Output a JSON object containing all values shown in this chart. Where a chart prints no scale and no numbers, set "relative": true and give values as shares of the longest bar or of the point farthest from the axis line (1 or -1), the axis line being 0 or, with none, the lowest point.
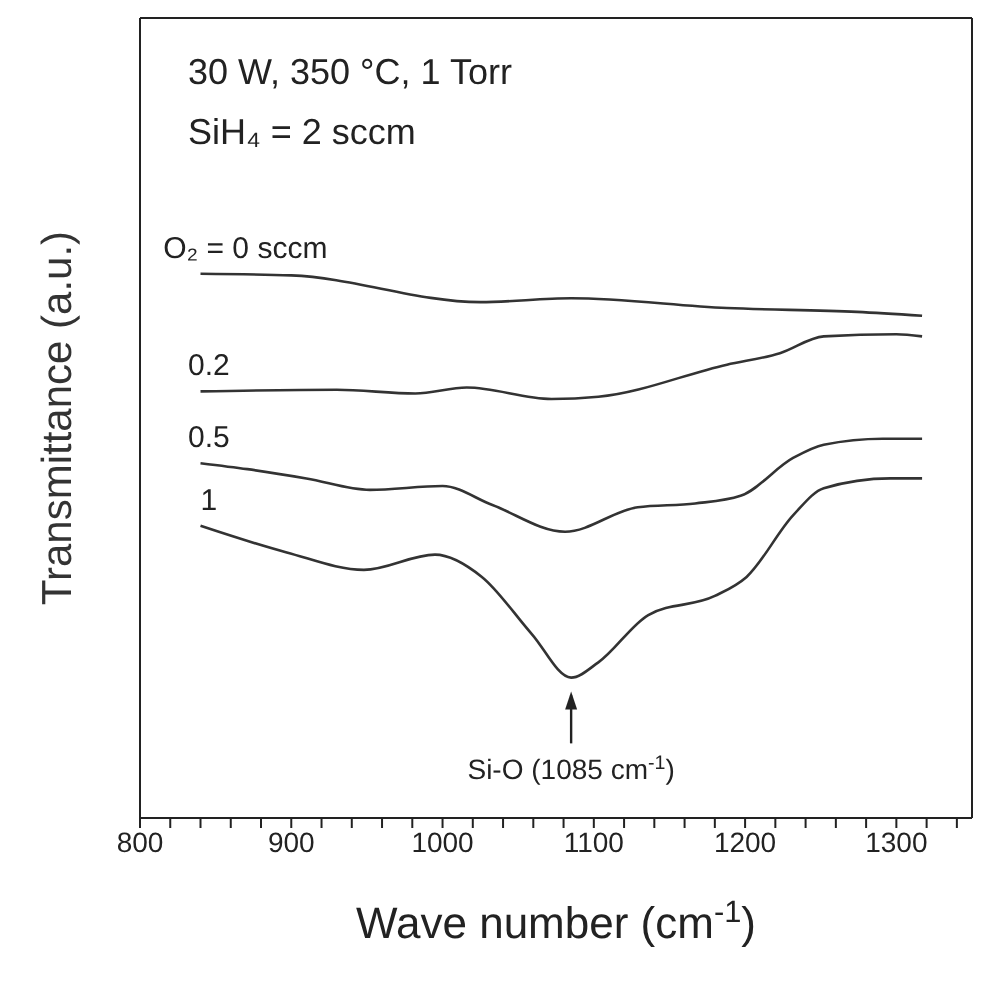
{
  "chart_data": {
    "type": "line",
    "relative": true,
    "xlabel": "Wave number (cm$^{-1}$)",
    "ylabel": "Transmittance (a.u.)",
    "xlim": [
      800,
      1350
    ],
    "xticks": [
      800,
      {
        "value": 820,
        "label": null
      },
      {
        "value": 840,
        "label": null
      },
      {
        "value": 860,
        "label": null
      },
      {
        "value": 880,
        "label": null
      },
      900,
      {
        "value": 920,
        "label": null
      },
      {
        "value": 940,
        "label": null
      },
      {
        "value": 960,
        "label": null
      },
      {
        "value": 980,
        "label": null
      },
      1000,
      {
        "value": 1020,
        "label": null
      },
      {
        "value": 1040,
        "label": null
      },
      {
        "value": 1060,
        "label": null
      },
      {
        "value": 1080,
        "label": null
      },
      1100,
      {
        "value": 1120,
        "label": null
      },
      {
        "value": 1140,
        "label": null
      },
      {
        "value": 1160,
        "label": null
      },
      {
        "value": 1180,
        "label": null
      },
      1200,
      {
        "value": 1220,
        "label": null
      },
      {
        "value": 1240,
        "label": null
      },
      {
        "value": 1260,
        "label": null
      },
      {
        "value": 1280,
        "label": null
      },
      1300,
      {
        "value": 1320,
        "label": null
      },
      {
        "value": 1340,
        "label": null
      }
    ],
    "series": [
      {
        "name": "O₂ = 0 sccm",
        "color": "#333333",
        "x": [
          840,
          900,
          1025,
          1085,
          1188,
          1274,
          1317
        ],
        "values": [
          1.0,
          0.997,
          0.948,
          0.955,
          0.937,
          0.93,
          0.923
        ]
      },
      {
        "name": "0.2",
        "color": "#333333",
        "x": [
          840,
          930,
          982,
          1016,
          1072,
          1103,
          1188,
          1223,
          1252,
          1300,
          1317
        ],
        "values": [
          0.784,
          0.787,
          0.78,
          0.791,
          0.77,
          0.774,
          0.833,
          0.854,
          0.885,
          0.889,
          0.885
        ]
      },
      {
        "name": "0.5",
        "color": "#333333",
        "x": [
          840,
          871,
          910,
          952,
          1000,
          1033,
          1081,
          1129,
          1167,
          1197,
          1232,
          1252,
          1291,
          1317
        ],
        "values": [
          0.652,
          0.641,
          0.624,
          0.603,
          0.61,
          0.575,
          0.526,
          0.571,
          0.578,
          0.592,
          0.662,
          0.686,
          0.697,
          0.697
        ]
      },
      {
        "name": "1",
        "color": "#333333",
        "x": [
          840,
          897,
          948,
          995,
          1026,
          1059,
          1085,
          1103,
          1136,
          1180,
          1201,
          1232,
          1252,
          1296,
          1317
        ],
        "values": [
          0.537,
          0.488,
          0.456,
          0.484,
          0.443,
          0.338,
          0.258,
          0.286,
          0.373,
          0.408,
          0.443,
          0.557,
          0.606,
          0.624,
          0.624
        ]
      }
    ],
    "annotations": [
      "30 W, 350 °C, 1 Torr",
      "SiH₄ = 2 sccm",
      {
        "text": "Si-O (1085 cm$^{-1}$)",
        "x": 1085,
        "y": 0.24
      }
    ],
    "marker": "none",
    "line_style": "solid"
  }
}
